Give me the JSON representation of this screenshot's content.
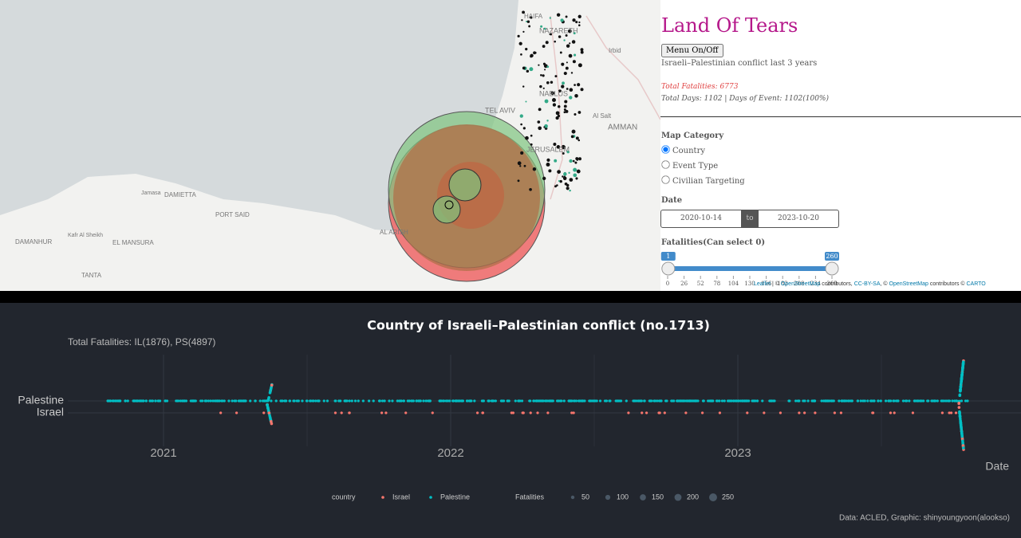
{
  "map": {
    "labels": [
      "HAIFA",
      "NAZARETH",
      "Irbid",
      "TEL AVIV",
      "NABLUS",
      "Al Salt",
      "AMMAN",
      "JERUSALEM",
      "Jamasa",
      "DAMIETTA",
      "PORT SAID",
      "Kafr Al Sheikh",
      "DAMANHUR",
      "EL MANSURA",
      "TANTA",
      "AL ARISH"
    ],
    "attribution": [
      "Leaflet",
      " | © ",
      "OpenStreetMap",
      " contributors, ",
      "CC-BY-SA",
      ", © ",
      "OpenStreetMap",
      " contributors © ",
      "CARTO"
    ]
  },
  "panel": {
    "title": "Land Of Tears",
    "menu_button": "Menu On/Off",
    "subtitle": "Israeli–Palestinian conflict last 3 years",
    "total_fatalities": "Total Fatalities: 6773",
    "days": "Total Days: 1102 | Days of Event: 1102(100%)",
    "map_category": {
      "label": "Map Category",
      "options": [
        "Country",
        "Event Type",
        "Civilian Targeting"
      ]
    },
    "date": {
      "label": "Date",
      "start": "2020-10-14",
      "separator": "to",
      "end": "2023-10-20"
    },
    "fatalities": {
      "label": "Fatalities(Can select 0)",
      "from": 1,
      "to": 260,
      "ticks": [
        0,
        26,
        52,
        78,
        104,
        130,
        156,
        182,
        208,
        234,
        260
      ]
    }
  },
  "chart": {
    "title": "Country of Israeli–Palestinian conflict (no.1713)",
    "subtitle": "Total Fatalities: IL(1876), PS(4897)",
    "y_categories": [
      "Palestine",
      "Israel"
    ],
    "x_ticks": [
      "2021",
      "2022",
      "2023"
    ],
    "x_label": "Date",
    "legend": {
      "country_title": "country",
      "countries": [
        {
          "name": "Israel",
          "color": "#f8766d"
        },
        {
          "name": "Palestine",
          "color": "#00bfc4"
        }
      ],
      "size_title": "Fatalities",
      "sizes": [
        50,
        100,
        150,
        200,
        250
      ]
    },
    "caption": "Data: ACLED, Graphic: shinyoungyoon(alookso)"
  }
}
